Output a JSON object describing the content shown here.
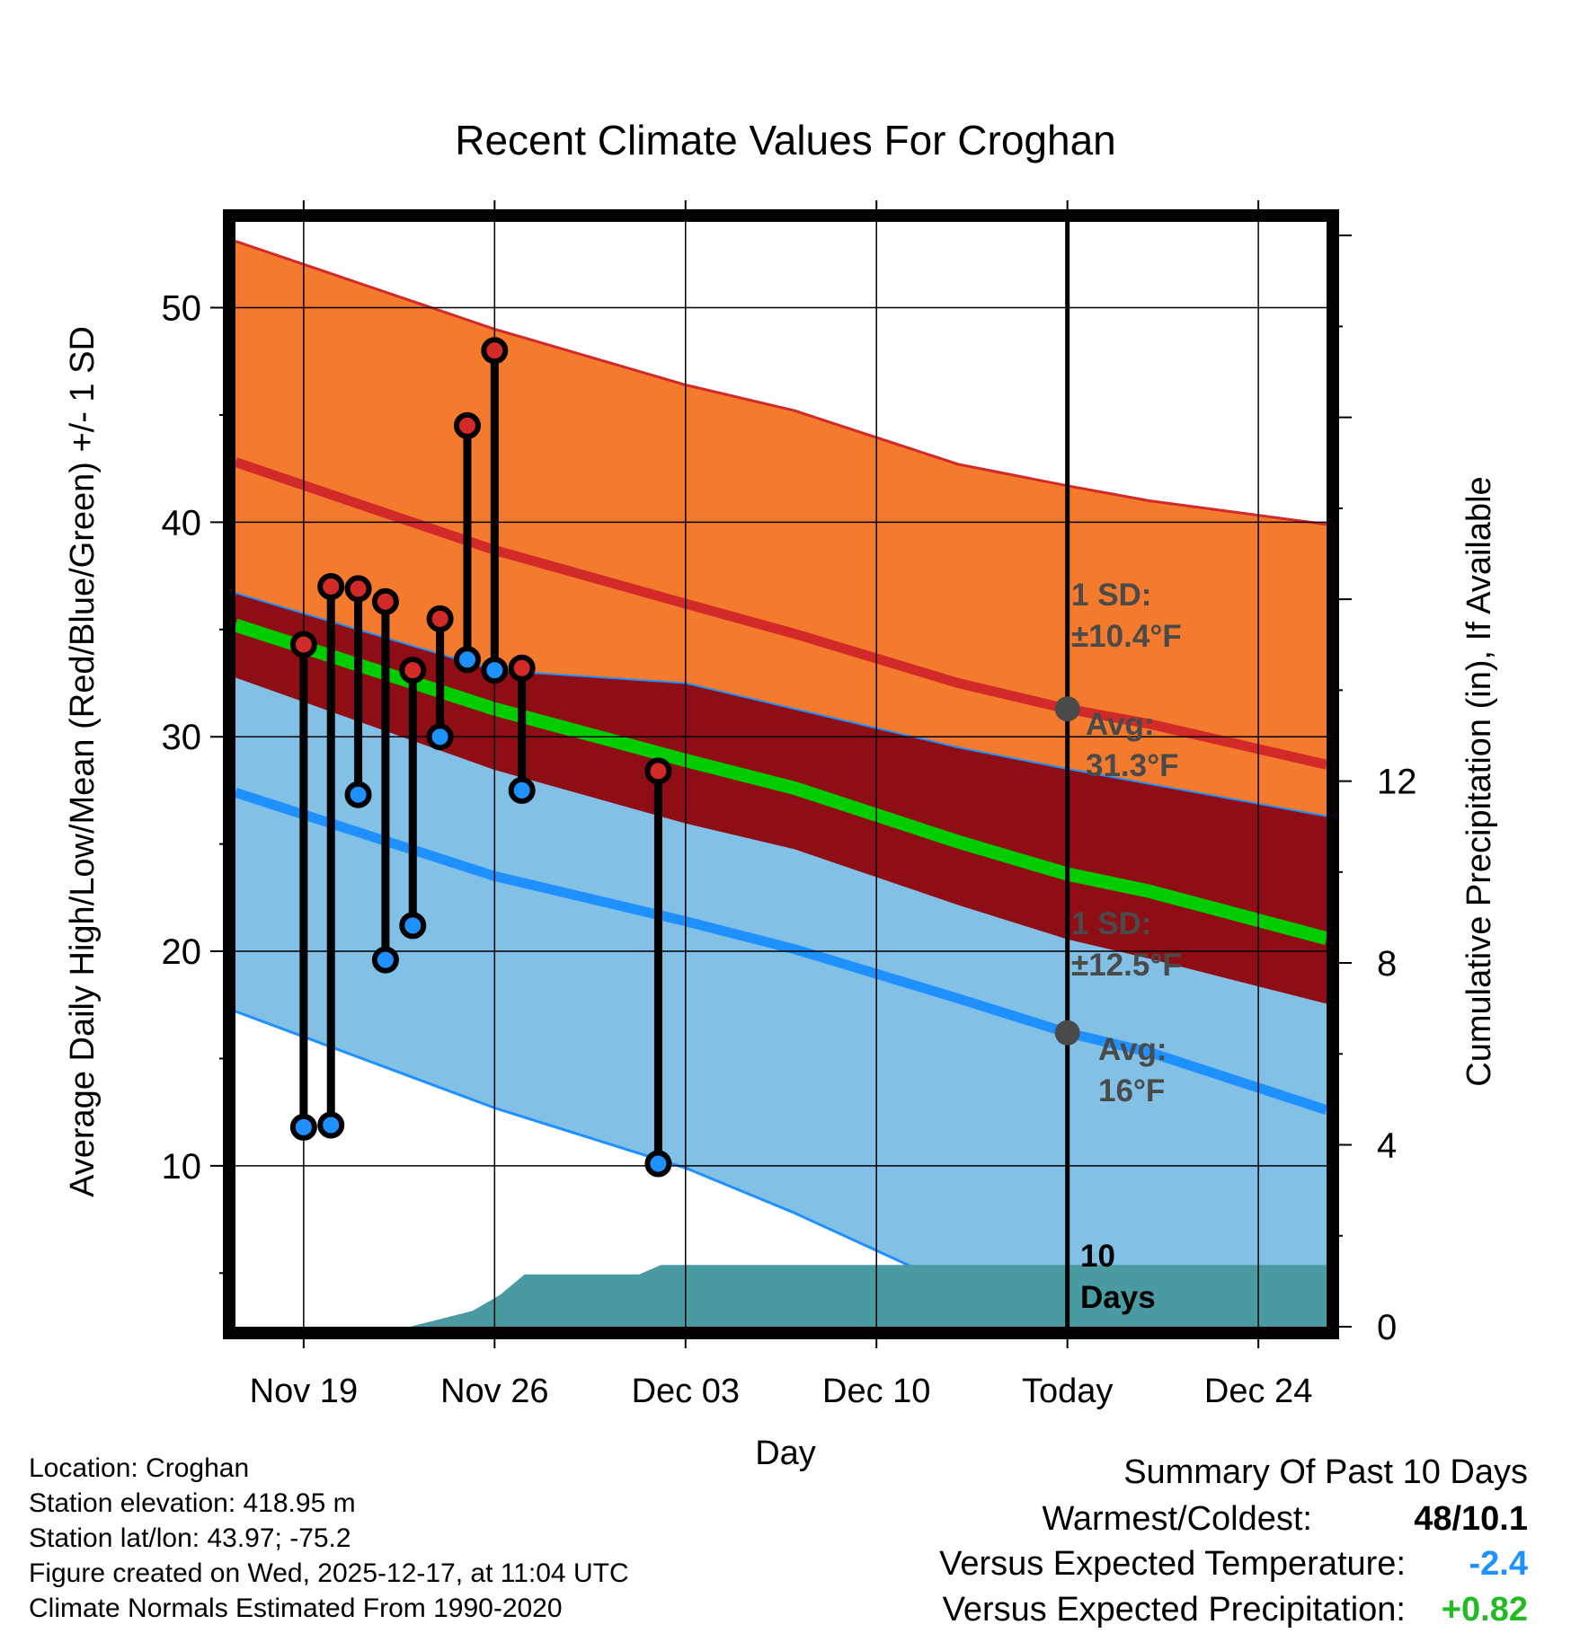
{
  "chart_data": {
    "type": "line",
    "title": "Recent Climate Values For Croghan",
    "xlabel": "Day",
    "ylabel": "Average Daily High/Low/Mean (Red/Blue/Green) +/- 1 SD",
    "y2label": "Cumulative Precipitation (in), If Available",
    "x_range_days": [
      -2.5,
      37.5
    ],
    "x_ticks": [
      {
        "day": 0,
        "label": "Nov 19"
      },
      {
        "day": 7,
        "label": "Nov 26"
      },
      {
        "day": 14,
        "label": "Dec 03"
      },
      {
        "day": 21,
        "label": "Dec 10"
      },
      {
        "day": 28,
        "label": "Today"
      },
      {
        "day": 35,
        "label": "Dec 24"
      }
    ],
    "ylim": [
      2.5,
      54
    ],
    "y_ticks": [
      10,
      20,
      30,
      40,
      50
    ],
    "y2lim": [
      0,
      24.3
    ],
    "y2_ticks": [
      0,
      4,
      8,
      12
    ],
    "grid": true,
    "today_day": 28,
    "normals": {
      "days": [
        -2.5,
        7,
        14,
        18,
        24,
        28,
        31,
        37.5
      ],
      "high_upper": [
        53.1,
        49.0,
        46.4,
        45.2,
        42.7,
        41.7,
        41.0,
        39.9
      ],
      "high_mean": [
        42.8,
        38.7,
        36.2,
        34.8,
        32.5,
        31.3,
        30.6,
        28.7
      ],
      "high_lower": [
        36.7,
        33.1,
        32.5,
        31.3,
        29.5,
        28.5,
        27.8,
        26.3
      ],
      "mean": [
        35.2,
        31.3,
        28.9,
        27.6,
        25.1,
        23.6,
        22.8,
        20.6
      ],
      "low_upper": [
        32.8,
        28.5,
        26.0,
        24.8,
        22.2,
        20.6,
        19.7,
        17.6
      ],
      "low_mean": [
        27.4,
        23.5,
        21.4,
        20.1,
        17.8,
        16.2,
        15.3,
        12.6
      ],
      "low_lower": [
        17.2,
        12.7,
        9.9,
        7.8,
        4.3,
        2.8,
        1.5,
        -1.8
      ]
    },
    "series": [
      {
        "name": "Observed High",
        "days": [
          0,
          1,
          2,
          3,
          4,
          5,
          6,
          7,
          8,
          13
        ],
        "values": [
          34.3,
          37.0,
          36.9,
          36.3,
          33.1,
          35.5,
          44.5,
          48.0,
          33.2,
          28.4
        ]
      },
      {
        "name": "Observed Low",
        "days": [
          0,
          1,
          2,
          3,
          4,
          5,
          6,
          7,
          8,
          13
        ],
        "values": [
          11.8,
          11.9,
          27.3,
          19.6,
          21.2,
          30.0,
          33.6,
          33.1,
          27.5,
          10.1
        ]
      },
      {
        "name": "Cumulative Precipitation",
        "days": [
          -2.5,
          3.9,
          6.2,
          7.2,
          8.1,
          12.3,
          13.1,
          37.5
        ],
        "values": [
          0,
          0,
          0.35,
          0.7,
          1.15,
          1.15,
          1.36,
          1.36
        ]
      }
    ],
    "annotations": [
      {
        "label": "1 SD:",
        "sublabel": "±10.4°F"
      },
      {
        "label": "Avg:",
        "sublabel": "31.3°F"
      },
      {
        "label": "1 SD:",
        "sublabel": "±12.5°F"
      },
      {
        "label": "Avg:",
        "sublabel": "16°F"
      },
      {
        "label": "10",
        "sublabel": "Days"
      }
    ],
    "colors": {
      "high_band": "#f47a2e",
      "high_line": "#d22a28",
      "overlap_band": "#8f0e16",
      "low_band": "#82c0e6",
      "low_line": "#1e90ff",
      "mean_line": "#00cc00",
      "precip": "#4a9aa2",
      "marker_high": "#d22a28",
      "marker_low": "#1e90ff",
      "annotation": "#4a4a4a"
    }
  },
  "info": {
    "location": "Location: Croghan",
    "elevation": "Station elevation: 418.95 m",
    "latlon": "Station lat/lon: 43.97; -75.2",
    "created": "Figure created on Wed, 2025-12-17, at 11:04 UTC",
    "normals": "Climate Normals Estimated From 1990-2020"
  },
  "summary": {
    "title": "Summary Of Past 10 Days",
    "warm_cold_label": "Warmest/Coldest:",
    "warm_cold_value": "48/10.1",
    "temp_label": "Versus Expected Temperature:",
    "temp_value": "-2.4",
    "temp_color": "#1e90ff",
    "precip_label": "Versus Expected Precipitation:",
    "precip_value": "+0.82",
    "precip_color": "#22bb22"
  }
}
